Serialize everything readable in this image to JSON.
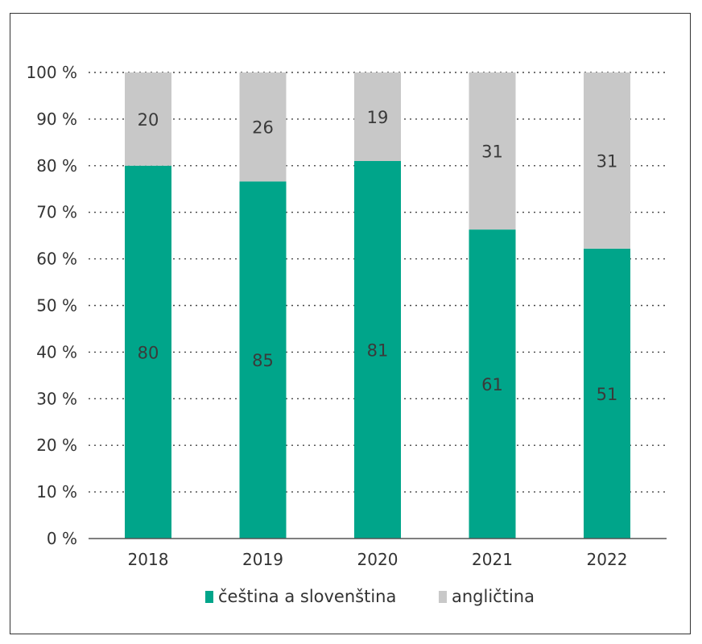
{
  "chart_data": {
    "type": "bar",
    "stacked": true,
    "categories": [
      "2018",
      "2019",
      "2020",
      "2021",
      "2022"
    ],
    "series": [
      {
        "name": "čeština a slovenština",
        "color": "#00a58a",
        "segment_shares": [
          80,
          76.6,
          81,
          66.3,
          62.2
        ],
        "labels": [
          "80",
          "85",
          "81",
          "61",
          "51"
        ]
      },
      {
        "name": "angličtina",
        "color": "#c8c8c8",
        "segment_shares": [
          20,
          23.4,
          19,
          33.7,
          37.8
        ],
        "labels": [
          "20",
          "26",
          "19",
          "31",
          "31"
        ]
      }
    ],
    "ylim": [
      0,
      100
    ],
    "yticks": [
      0,
      10,
      20,
      30,
      40,
      50,
      60,
      70,
      80,
      90,
      100
    ],
    "ytick_suffix": " %",
    "grid": "horizontal-dotted",
    "legend_position": "bottom"
  }
}
